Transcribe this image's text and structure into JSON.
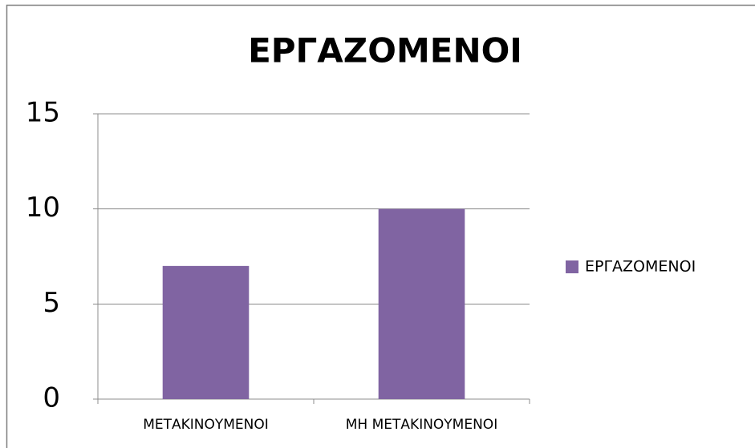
{
  "chart_data": {
    "type": "bar",
    "title": "ΕΡΓΑΖΟΜΕΝΟΙ",
    "categories": [
      "ΜΕΤΑΚΙΝΟΥΜΕΝΟΙ",
      "ΜΗ ΜΕΤΑΚΙΝΟΥΜΕΝΟΙ"
    ],
    "series": [
      {
        "name": "ΕΡΓΑΖΟΜΕΝΟΙ",
        "color": "#8064a2",
        "values": [
          7,
          10
        ]
      }
    ],
    "ylim": [
      0,
      15
    ],
    "yticks": [
      0,
      5,
      10,
      15
    ],
    "grid": true,
    "legend": "right"
  }
}
